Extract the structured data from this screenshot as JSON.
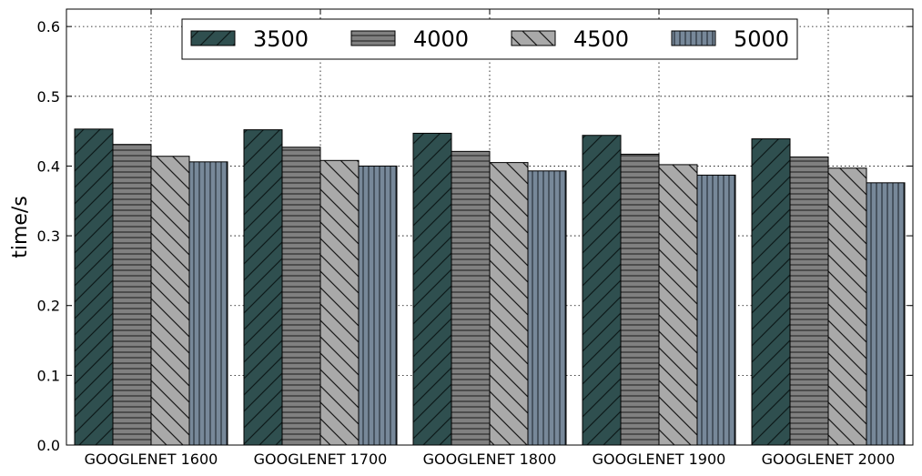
{
  "chart_data": {
    "type": "bar",
    "title": "",
    "xlabel": "",
    "ylabel": "time/s",
    "ylim": [
      0,
      0.625
    ],
    "yticks": [
      "0.0",
      "0.1",
      "0.2",
      "0.3",
      "0.4",
      "0.5",
      "0.6"
    ],
    "grid": true,
    "legend_position": "top-center",
    "categories": [
      "GOOGLENET 1600",
      "GOOGLENET 1700",
      "GOOGLENET 1800",
      "GOOGLENET 1900",
      "GOOGLENET 2000"
    ],
    "series": [
      {
        "name": "3500",
        "values": [
          0.453,
          0.452,
          0.447,
          0.444,
          0.439
        ],
        "color": "#2f4f4f",
        "hatch": "diagonal-forward"
      },
      {
        "name": "4000",
        "values": [
          0.431,
          0.427,
          0.421,
          0.417,
          0.413
        ],
        "color": "#808080",
        "hatch": "horizontal"
      },
      {
        "name": "4500",
        "values": [
          0.414,
          0.408,
          0.405,
          0.402,
          0.397
        ],
        "color": "#a9a9a9",
        "hatch": "diagonal-back"
      },
      {
        "name": "5000",
        "values": [
          0.406,
          0.4,
          0.393,
          0.387,
          0.376
        ],
        "color": "#778899",
        "hatch": "vertical"
      }
    ]
  }
}
